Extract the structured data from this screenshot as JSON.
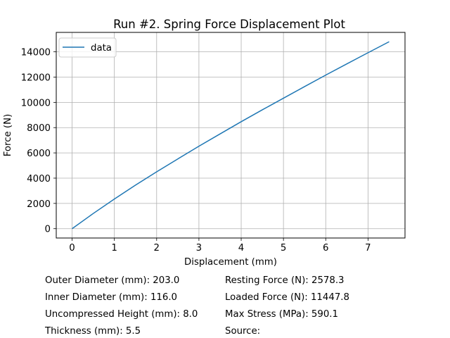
{
  "chart_data": {
    "type": "line",
    "title": "Run #2. Spring Force Displacement Plot",
    "xlabel": "Displacement (mm)",
    "ylabel": "Force (N)",
    "xlim": [
      -0.375,
      7.875
    ],
    "ylim": [
      -740,
      15540
    ],
    "xticks": [
      0,
      1,
      2,
      3,
      4,
      5,
      6,
      7
    ],
    "yticks": [
      0,
      2000,
      4000,
      6000,
      8000,
      10000,
      12000,
      14000
    ],
    "grid": true,
    "legend": "top-left",
    "series": [
      {
        "name": "data",
        "color": "#1f77b4",
        "x": [
          0,
          0.5,
          1,
          1.5,
          2,
          2.5,
          3,
          3.5,
          4,
          4.5,
          5,
          5.5,
          6,
          6.5,
          7,
          7.5
        ],
        "y": [
          0,
          1200,
          2350,
          3450,
          4500,
          5520,
          6530,
          7500,
          8470,
          9410,
          10330,
          11250,
          12160,
          13050,
          13930,
          14800
        ]
      }
    ]
  },
  "specs": {
    "outer_diameter": "Outer Diameter (mm): 203.0",
    "inner_diameter": "Inner Diameter (mm): 116.0",
    "uncompressed_height": "Uncompressed Height (mm): 8.0",
    "thickness": "Thickness (mm): 5.5",
    "resting_force": "Resting Force (N): 2578.3",
    "loaded_force": "Loaded Force (N): 11447.8",
    "max_stress": "Max Stress (MPa): 590.1",
    "source": "Source:"
  }
}
